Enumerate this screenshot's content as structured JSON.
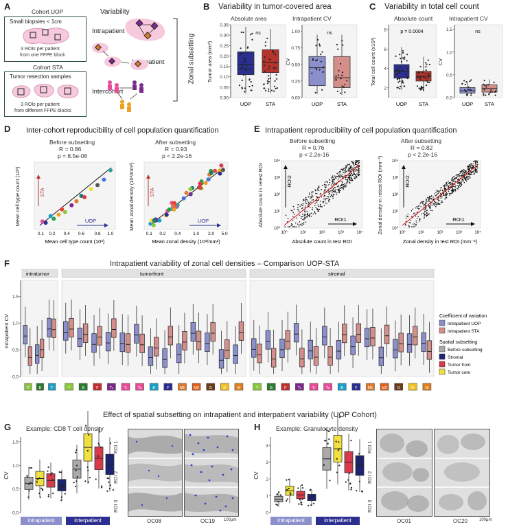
{
  "panels": {
    "A": {
      "letter": "A",
      "cohort_uop_title": "Cohort UOP",
      "uop_desc": "Small biopsies < 1cm",
      "uop_rois": "3 ROIs per patient",
      "uop_block": "from one FFPE block",
      "cohort_sta_title": "Cohort STA",
      "sta_desc": "Tumor resection samples",
      "sta_rois": "3 ROIs per patient",
      "sta_block": "from different FFPE blocks",
      "variability": "Variability",
      "intrapatient": "Intrapatient",
      "interpatient": "Interpatient",
      "intercohort": "Intercohort",
      "zonal": "Zonal subsetting"
    },
    "B": {
      "letter": "B",
      "title": "Variability in tumor-covered area",
      "left_sub": "Absolute area",
      "right_sub": "Intrapatient CV",
      "ylabel_left": "Tumor area (mm²)",
      "ylabel_right": "CV",
      "ns1": "ns",
      "ns2": "ns",
      "xcats": [
        "UOP",
        "STA"
      ],
      "left_ticks": [
        "0.00",
        "0.05",
        "0.10",
        "0.15",
        "0.20",
        "0.25",
        "0.30",
        "0.35"
      ],
      "right_ticks": [
        "0.00",
        "0.25",
        "0.50",
        "0.75",
        "1.00"
      ]
    },
    "C": {
      "letter": "C",
      "title": "Variability in total cell count",
      "left_sub": "Absolute count",
      "right_sub": "Intrapatient CV",
      "ylabel_left": "Total cell count (x10³)",
      "ylabel_right": "CV",
      "pval": "p = 0.0004",
      "ns": "ns",
      "xcats": [
        "UOP",
        "STA"
      ],
      "left_ticks": [
        "2",
        "4",
        "6",
        "8"
      ],
      "right_ticks": [
        "0.0",
        "0.5",
        "1.0",
        "1.5"
      ]
    },
    "D": {
      "letter": "D",
      "title": "Inter-cohort reproducibility of cell population quantification",
      "before": "Before subsetting",
      "before_r": "R = 0.86",
      "before_p": "p = 8.5e-06",
      "after": "After subsetting",
      "after_r": "R = 0.93",
      "after_p": "p < 2.2e-16",
      "ylabel_left": "Mean cell type count (10³)",
      "ylabel_right": "Mean zonal density (10³/mm²)",
      "xlabel_left": "Mean cell type count (10³)",
      "xlabel_right": "Mean zonal density (10³/mm²)",
      "sta": "STA",
      "uop": "UOP",
      "left_ticks": [
        "0.1",
        "0.2",
        "0.4",
        "0.6",
        "0.8",
        "1.0"
      ],
      "right_ticks": [
        "0.1",
        "0.2",
        "0.4",
        "1.0",
        "2.0",
        "5.0"
      ]
    },
    "E": {
      "letter": "E",
      "title": "Intrapatient reproducibility of cell population quantification",
      "before": "Before subsetting",
      "before_r": "R = 0.76",
      "before_p": "p < 2.2e-16",
      "after": "After subsetting",
      "after_r": "R = 0.82",
      "after_p": "p < 2.2e-16",
      "ylabel_left": "Absolute count in retest ROI",
      "ylabel_right": "Zonal density in retest ROI (mm⁻²)",
      "xlabel_left": "Absolute count in test ROI",
      "xlabel_right": "Zonal density in test ROI (mm⁻²)",
      "roi1": "ROI1",
      "roi2": "ROI2",
      "log_ticks": [
        "10⁰",
        "10¹",
        "10²",
        "10³",
        "10⁴"
      ]
    },
    "F": {
      "letter": "F",
      "title": "Intrapatient variability of zonal cell densities – Comparison UOP-STA",
      "ylabel": "Intrapatient CV",
      "groups": [
        "intratumor",
        "tumorfront",
        "stromal"
      ],
      "yticks": [
        "0.0",
        "0.5",
        "1.0",
        "1.5"
      ],
      "legend_cv_title": "Coefficient of variation",
      "legend_cv_items": [
        "Intrapatient UOP",
        "Intrapatient STA"
      ],
      "legend_ss_title": "Spatial subsetting",
      "legend_ss_items": [
        "Before subsetting",
        "Stromal",
        "Tumor front",
        "Tumor core"
      ],
      "intratumor_labels": [
        "T",
        "B",
        "F"
      ],
      "tumorfront_labels": [
        "T",
        "B",
        "F",
        "Tₕ",
        "Tᵣ",
        "Tc",
        "B",
        "F",
        "M1",
        "M2",
        "G",
        "D",
        "M"
      ],
      "stromal_labels": [
        "T",
        "B",
        "F",
        "Tₕ",
        "Tᵣ",
        "Tc",
        "B",
        "F",
        "M1",
        "M2",
        "G",
        "D",
        "M"
      ]
    },
    "main_title": "Effect of spatial subsetting on intrapatient and interpatient variability (UOP Cohort)",
    "G": {
      "letter": "G",
      "subtitle": "Example: CD8 T cell density",
      "ylabel": "CV",
      "yticks": [
        "0.0",
        "0.5",
        "1.0",
        "1.5"
      ],
      "intrapatient": "intrapatient",
      "interpatient": "interpatient",
      "roi1": "ROI 1",
      "roi2": "ROI 2",
      "roi3": "ROI 3",
      "case1": "OC08",
      "case2": "OC19",
      "scale": "100μm"
    },
    "H": {
      "letter": "H",
      "subtitle": "Example: Granulocyte density",
      "ylabel": "CV",
      "yticks": [
        "0",
        "1",
        "2",
        "3",
        "4"
      ],
      "intrapatient": "intrapatient",
      "interpatient": "interpatient",
      "roi1": "ROI 1",
      "roi2": "ROI 2",
      "roi3": "ROI 3",
      "case1": "OC01",
      "case2": "OC20",
      "scale": "100μm"
    }
  },
  "colors": {
    "uop": "#2b2f8f",
    "sta": "#b5342c",
    "uop_light": "#8b8fcc",
    "sta_light": "#d48f8a",
    "teal": "#2d4f4a",
    "gray": "#aaaaaa",
    "stromal": "#1d2370",
    "front": "#d63a4b",
    "core": "#f0e040"
  },
  "chart_data": [
    {
      "type": "box",
      "title": "Variability in tumor-covered area — Absolute area",
      "categories": [
        "UOP",
        "STA"
      ],
      "ylabel": "Tumor area (mm²)",
      "ylim": [
        0.0,
        0.35
      ],
      "medians": [
        0.16,
        0.17
      ],
      "q1": [
        0.11,
        0.12
      ],
      "q3": [
        0.22,
        0.23
      ],
      "annotation": "ns"
    },
    {
      "type": "box",
      "title": "Variability in tumor-covered area — Intrapatient CV",
      "categories": [
        "UOP",
        "STA"
      ],
      "ylabel": "CV",
      "ylim": [
        0.0,
        1.0
      ],
      "medians": [
        0.45,
        0.3
      ],
      "q1": [
        0.18,
        0.15
      ],
      "q3": [
        0.62,
        0.62
      ],
      "annotation": "ns"
    },
    {
      "type": "box",
      "title": "Variability in total cell count — Absolute count",
      "categories": [
        "UOP",
        "STA"
      ],
      "ylabel": "Total cell count (x10³)",
      "ylim": [
        1,
        8
      ],
      "medians": [
        3.7,
        3.2
      ],
      "q1": [
        3.0,
        2.7
      ],
      "q3": [
        4.4,
        3.7
      ],
      "annotation": "p = 0.0004"
    },
    {
      "type": "box",
      "title": "Variability in total cell count — Intrapatient CV",
      "categories": [
        "UOP",
        "STA"
      ],
      "ylabel": "CV",
      "ylim": [
        0.0,
        1.5
      ],
      "medians": [
        0.15,
        0.2
      ],
      "q1": [
        0.1,
        0.12
      ],
      "q3": [
        0.22,
        0.28
      ],
      "annotation": "ns"
    },
    {
      "type": "scatter",
      "title": "Inter-cohort reproducibility — Before subsetting",
      "xlabel": "Mean cell type count (10³)",
      "ylabel": "Mean cell type count (10³)",
      "stats": "R = 0.86, p = 8.5e-06"
    },
    {
      "type": "scatter",
      "title": "Inter-cohort reproducibility — After subsetting",
      "xlabel": "Mean zonal density (10³/mm²)",
      "ylabel": "Mean zonal density (10³/mm²)",
      "stats": "R = 0.93, p < 2.2e-16"
    },
    {
      "type": "box",
      "title": "Effect of spatial subsetting — CD8 T cell density",
      "categories": [
        "Before subsetting",
        "Tumor core",
        "Tumor front",
        "Stromal",
        "Before subsetting",
        "Tumor core",
        "Tumor front",
        "Stromal"
      ],
      "groups": [
        "intrapatient",
        "intrapatient",
        "intrapatient",
        "intrapatient",
        "interpatient",
        "interpatient",
        "interpatient",
        "interpatient"
      ],
      "medians": [
        0.62,
        0.72,
        0.68,
        0.58,
        0.92,
        1.38,
        1.15,
        1.02
      ],
      "ylim": [
        0.0,
        1.6
      ]
    },
    {
      "type": "box",
      "title": "Effect of spatial subsetting — Granulocyte density",
      "categories": [
        "Before subsetting",
        "Tumor core",
        "Tumor front",
        "Stromal",
        "Before subsetting",
        "Tumor core",
        "Tumor front",
        "Stromal"
      ],
      "groups": [
        "intrapatient",
        "intrapatient",
        "intrapatient",
        "intrapatient",
        "interpatient",
        "interpatient",
        "interpatient",
        "interpatient"
      ],
      "medians": [
        0.8,
        1.3,
        1.05,
        0.9,
        3.2,
        3.8,
        3.0,
        2.8
      ],
      "ylim": [
        0,
        4.5
      ]
    }
  ]
}
